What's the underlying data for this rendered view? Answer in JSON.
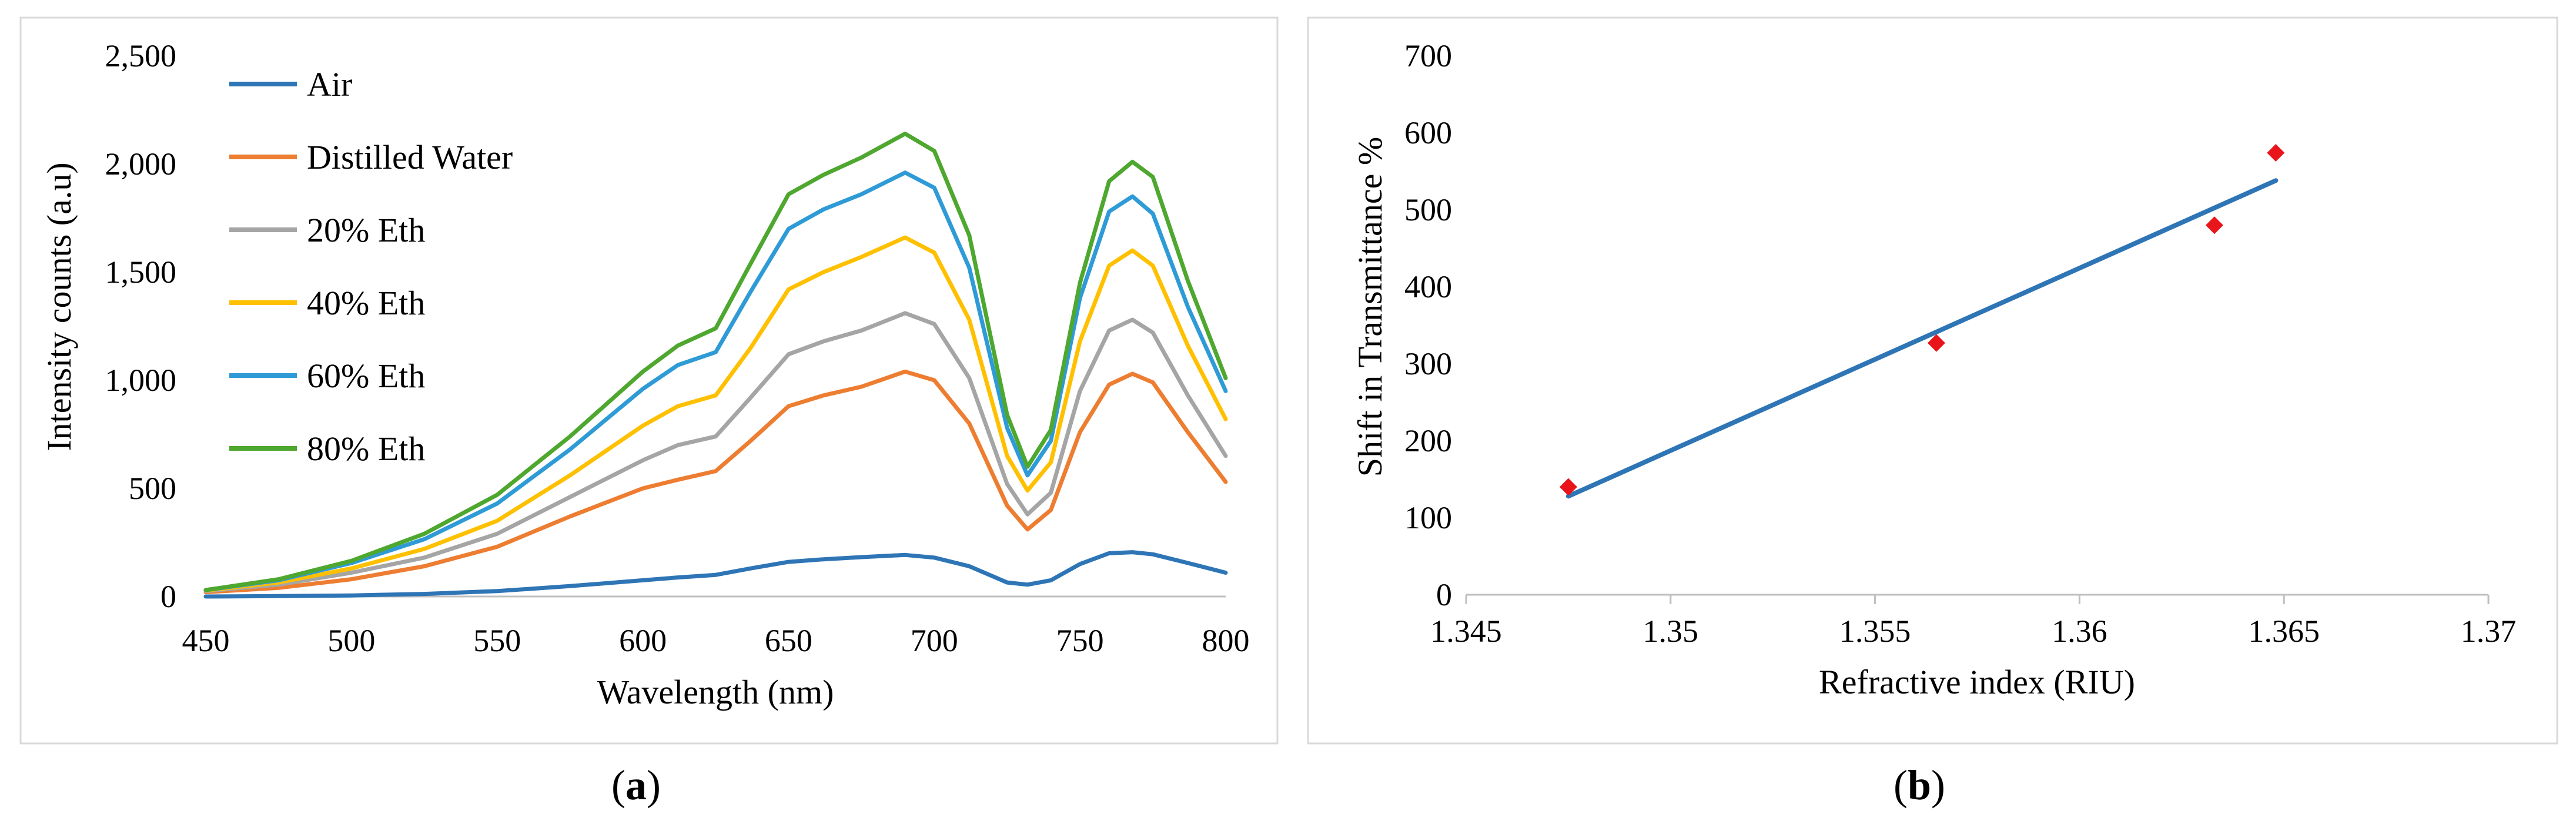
{
  "chart_data": [
    {
      "type": "line",
      "panel": "a",
      "xlabel": "Wavelength (nm)",
      "ylabel": "Intensity counts (a.u)",
      "xlim": [
        450,
        800
      ],
      "ylim": [
        0,
        2500
      ],
      "xticks": [
        "450",
        "500",
        "550",
        "600",
        "650",
        "700",
        "750",
        "800"
      ],
      "yticks": [
        "0",
        "500",
        "1,000",
        "1,500",
        "2,000",
        "2,500"
      ],
      "x": [
        450,
        475,
        500,
        525,
        550,
        575,
        600,
        612,
        625,
        637,
        650,
        662,
        675,
        690,
        700,
        712,
        725,
        732,
        740,
        750,
        760,
        768,
        775,
        787,
        800
      ],
      "series": [
        {
          "name": "Air",
          "color": "#2E75B6",
          "values": [
            0,
            2,
            5,
            12,
            25,
            48,
            75,
            88,
            100,
            130,
            160,
            172,
            182,
            192,
            180,
            140,
            65,
            55,
            75,
            150,
            200,
            205,
            195,
            155,
            110
          ]
        },
        {
          "name": "Distilled Water",
          "color": "#ED7D31",
          "values": [
            20,
            40,
            80,
            140,
            230,
            370,
            500,
            540,
            580,
            720,
            880,
            930,
            970,
            1040,
            1000,
            800,
            420,
            310,
            400,
            760,
            980,
            1030,
            990,
            760,
            530
          ]
        },
        {
          "name": "20% Eth",
          "color": "#A5A5A5",
          "values": [
            25,
            55,
            110,
            180,
            290,
            460,
            630,
            700,
            740,
            920,
            1120,
            1180,
            1230,
            1310,
            1260,
            1010,
            520,
            380,
            480,
            950,
            1230,
            1280,
            1220,
            930,
            650
          ]
        },
        {
          "name": "40% Eth",
          "color": "#FFC000",
          "values": [
            28,
            65,
            130,
            220,
            350,
            560,
            790,
            880,
            930,
            1150,
            1420,
            1500,
            1570,
            1660,
            1590,
            1280,
            650,
            490,
            620,
            1180,
            1530,
            1600,
            1530,
            1160,
            820
          ]
        },
        {
          "name": "60% Eth",
          "color": "#2E9BD6",
          "values": [
            30,
            75,
            155,
            265,
            430,
            680,
            960,
            1070,
            1130,
            1410,
            1700,
            1790,
            1860,
            1960,
            1890,
            1520,
            780,
            560,
            720,
            1380,
            1780,
            1850,
            1770,
            1340,
            950
          ]
        },
        {
          "name": "80% Eth",
          "color": "#4EA72E",
          "values": [
            30,
            80,
            165,
            290,
            470,
            740,
            1040,
            1160,
            1240,
            1540,
            1860,
            1950,
            2030,
            2140,
            2060,
            1670,
            840,
            600,
            770,
            1450,
            1920,
            2010,
            1940,
            1460,
            1010
          ]
        }
      ]
    },
    {
      "type": "scatter",
      "panel": "b",
      "xlabel": "Refractive index (RIU)",
      "ylabel": "Shift in Transmittance %",
      "xlim": [
        1.345,
        1.37
      ],
      "ylim": [
        0,
        700
      ],
      "xticks": [
        "1.345",
        "1.35",
        "1.355",
        "1.36",
        "1.365",
        "1.37"
      ],
      "yticks": [
        "0",
        "100",
        "200",
        "300",
        "400",
        "500",
        "600",
        "700"
      ],
      "points": [
        {
          "x": 1.3475,
          "y": 140
        },
        {
          "x": 1.3565,
          "y": 327
        },
        {
          "x": 1.3633,
          "y": 480
        },
        {
          "x": 1.3648,
          "y": 574
        }
      ],
      "point_color": "#E8161B",
      "trendline": {
        "color": "#2E75B6",
        "x": [
          1.3475,
          1.3648
        ],
        "y": [
          128,
          538
        ]
      }
    }
  ],
  "captions": {
    "a_open": "(",
    "a_letter": "a",
    "a_close": ")",
    "b_open": "(",
    "b_letter": "b",
    "b_close": ")"
  }
}
